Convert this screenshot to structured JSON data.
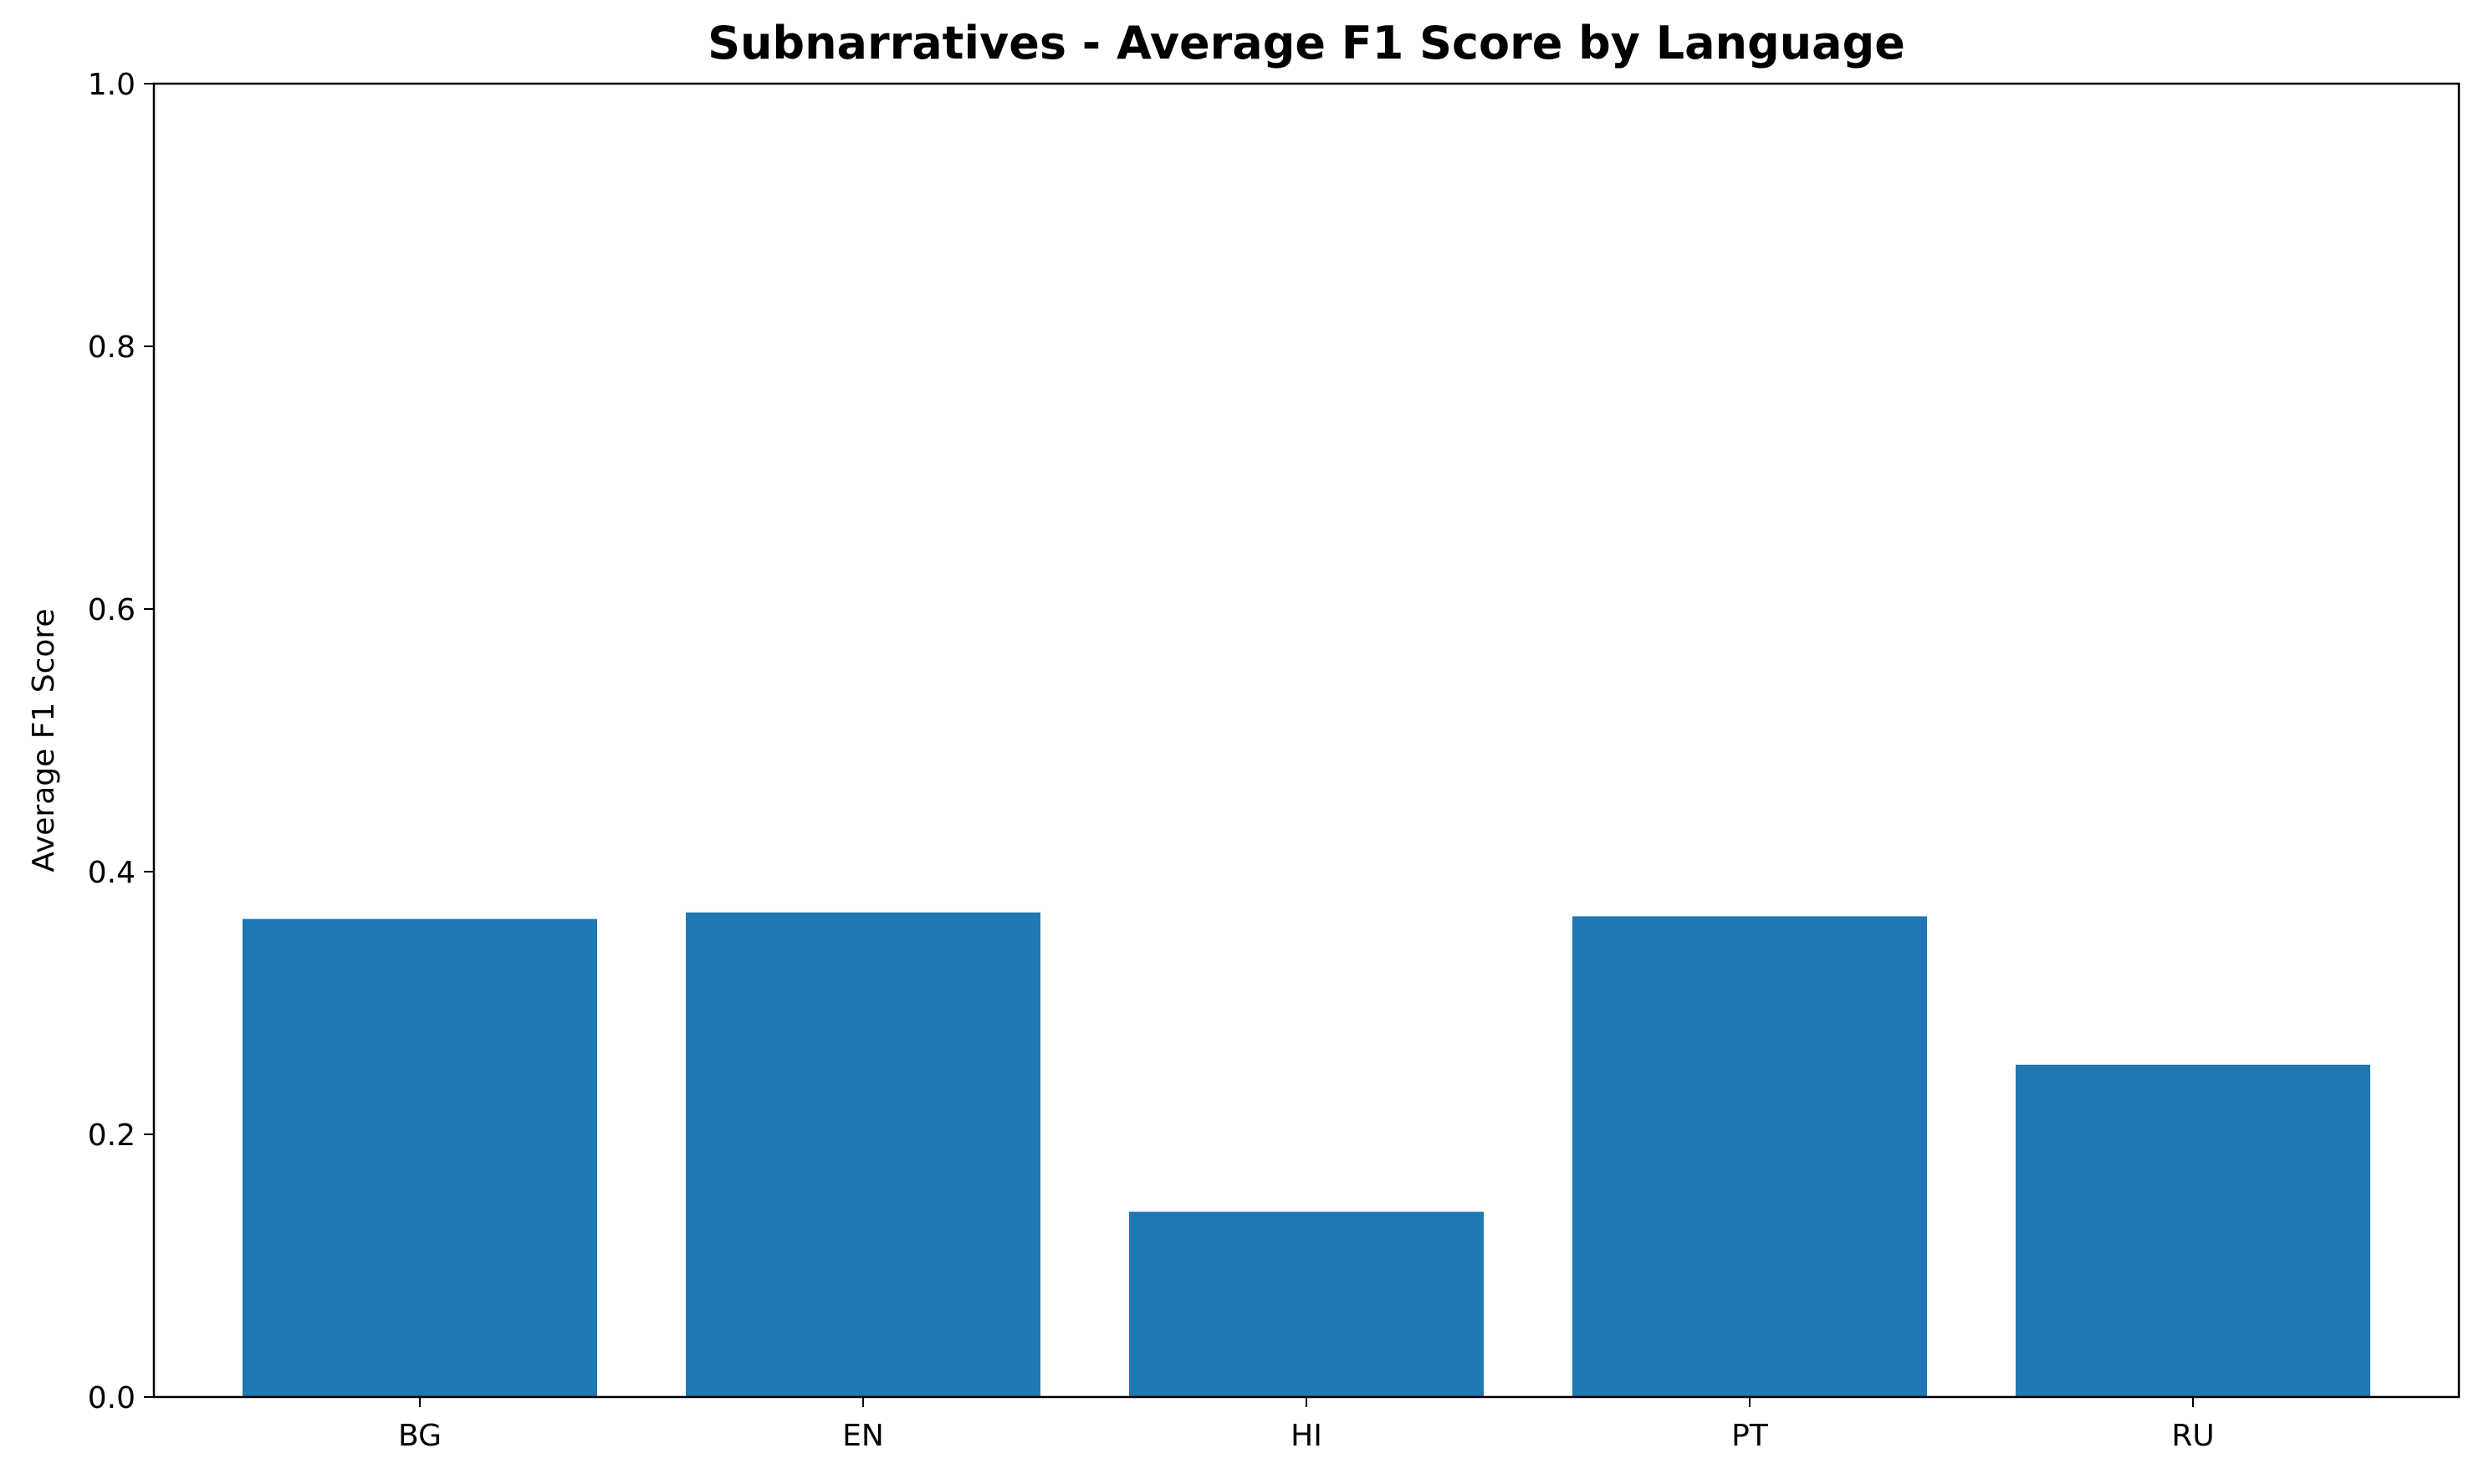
{
  "chart_data": {
    "type": "bar",
    "title": "Subnarratives - Average F1 Score by Language",
    "xlabel": "",
    "ylabel": "Average F1 Score",
    "categories": [
      "BG",
      "EN",
      "HI",
      "PT",
      "RU"
    ],
    "values": [
      0.364,
      0.369,
      0.141,
      0.366,
      0.253
    ],
    "ylim": [
      0,
      1.0
    ],
    "yticks": [
      "0.0",
      "0.2",
      "0.4",
      "0.6",
      "0.8",
      "1.0"
    ],
    "bar_color": "#1f77b4",
    "grid": false,
    "legend": "none"
  }
}
